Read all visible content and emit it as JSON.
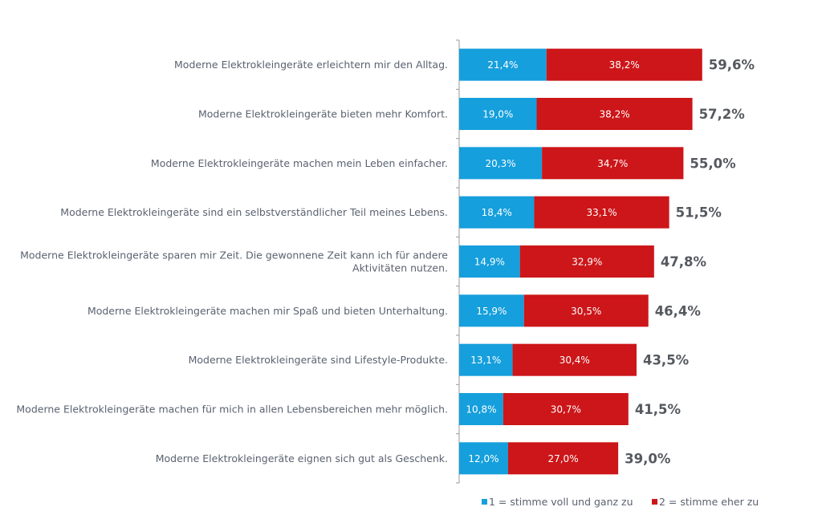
{
  "chart_data": {
    "type": "bar",
    "orientation": "horizontal",
    "stacked": true,
    "categories": [
      [
        "Moderne Elektrokleingeräte erleichtern mir den Alltag."
      ],
      [
        "Moderne Elektrokleingeräte bieten mehr Komfort."
      ],
      [
        "Moderne Elektrokleingeräte machen mein Leben einfacher."
      ],
      [
        "Moderne Elektrokleingeräte sind ein selbstverständlicher Teil meines Lebens."
      ],
      [
        "Moderne Elektrokleingeräte sparen mir Zeit. Die gewonnene Zeit kann ich für andere",
        "Aktivitäten nutzen."
      ],
      [
        "Moderne Elektrokleingeräte machen mir Spaß und bieten Unterhaltung."
      ],
      [
        "Moderne Elektrokleingeräte sind Lifestyle-Produkte."
      ],
      [
        "Moderne Elektrokleingeräte machen für mich in allen Lebensbereichen mehr möglich."
      ],
      [
        "Moderne Elektrokleingeräte eignen sich gut als Geschenk."
      ]
    ],
    "series": [
      {
        "name": "1 = stimme voll und ganz zu",
        "color": "#159fdc",
        "values": [
          21.4,
          19.0,
          20.3,
          18.4,
          14.9,
          15.9,
          13.1,
          10.8,
          12.0
        ],
        "labels": [
          "21,4%",
          "19,0%",
          "20,3%",
          "18,4%",
          "14,9%",
          "15,9%",
          "13,1%",
          "10,8%",
          "12,0%"
        ]
      },
      {
        "name": "2 = stimme eher zu",
        "color": "#cc1619",
        "values": [
          38.2,
          38.2,
          34.7,
          33.1,
          32.9,
          30.5,
          30.4,
          30.7,
          27.0
        ],
        "labels": [
          "38,2%",
          "38,2%",
          "34,7%",
          "33,1%",
          "32,9%",
          "30,5%",
          "30,4%",
          "30,7%",
          "27,0%"
        ]
      }
    ],
    "totals": [
      59.6,
      57.2,
      55.0,
      51.5,
      47.8,
      46.4,
      43.5,
      41.5,
      39.0
    ],
    "total_labels": [
      "59,6%",
      "57,2%",
      "55,0%",
      "51,5%",
      "47,8%",
      "46,4%",
      "43,5%",
      "41,5%",
      "39,0%"
    ],
    "xlim": [
      0,
      100
    ],
    "grid": false,
    "legend_position": "bottom-right"
  }
}
